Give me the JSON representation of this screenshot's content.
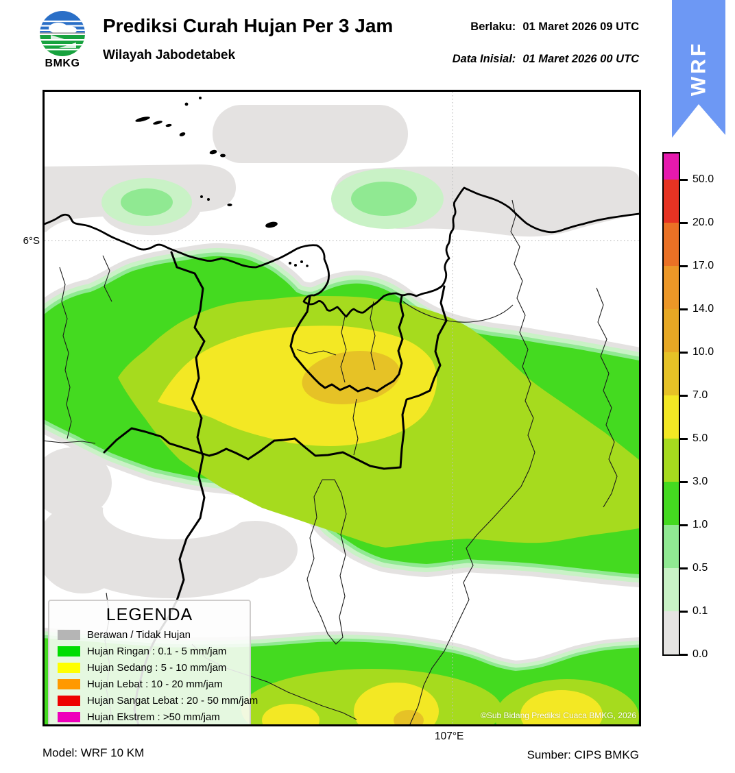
{
  "header": {
    "logo_text": "BMKG",
    "title": "Prediksi Curah Hujan Per 3 Jam",
    "subtitle": "Wilayah Jabodetabek",
    "valid_label": "Berlaku:",
    "valid_value": "01 Maret 2026 09 UTC",
    "initial_label": "Data Inisial:",
    "initial_value": "01 Maret 2026 00 UTC"
  },
  "ribbon": {
    "label": "WRF",
    "color": "#6d98f4"
  },
  "map": {
    "lat_tick": "6°S",
    "lon_tick": "107°E",
    "copyright": "©Sub Bidang Prediksi Cuaca BMKG, 2026"
  },
  "scale": {
    "ticks": [
      "50.0",
      "20.0",
      "17.0",
      "14.0",
      "10.0",
      "7.0",
      "5.0",
      "3.0",
      "1.0",
      "0.5",
      "0.1",
      "0.0"
    ],
    "segment_colors": [
      "#e619ae",
      "#e63323",
      "#ea7125",
      "#ec9727",
      "#e7a824",
      "#e6c226",
      "#f3e824",
      "#a6db1e",
      "#44da20",
      "#90e992",
      "#c9f2c6",
      "#e5e4e2"
    ],
    "colors": {
      "cloud": "#e4e2e1",
      "trace_gray": "#e5e4e2",
      "pale_green": "#c9f2c6",
      "light_green": "#90e992",
      "green": "#44da20",
      "yellow_green": "#a6db1e",
      "yellow": "#f3e824",
      "gold": "#e6c226",
      "amber": "#e7a824",
      "orange": "#ec9727",
      "deep_orange": "#ea7125",
      "red": "#e63323",
      "magenta": "#e619ae"
    }
  },
  "legend": {
    "title": "LEGENDA",
    "items": [
      {
        "color": "#b5b5b5",
        "label": "Berawan / Tidak Hujan"
      },
      {
        "color": "#00dd00",
        "label": "Hujan Ringan : 0.1 - 5 mm/jam"
      },
      {
        "color": "#ffff00",
        "label": "Hujan Sedang : 5 - 10 mm/jam"
      },
      {
        "color": "#ff9900",
        "label": "Hujan Lebat : 10 - 20 mm/jam"
      },
      {
        "color": "#ee0000",
        "label": "Hujan Sangat Lebat : 20 - 50 mm/jam"
      },
      {
        "color": "#ee00bb",
        "label": "Hujan Ekstrem : >50 mm/jam"
      }
    ]
  },
  "footer": {
    "model": "Model: WRF 10 KM",
    "source": "Sumber: CIPS BMKG"
  }
}
